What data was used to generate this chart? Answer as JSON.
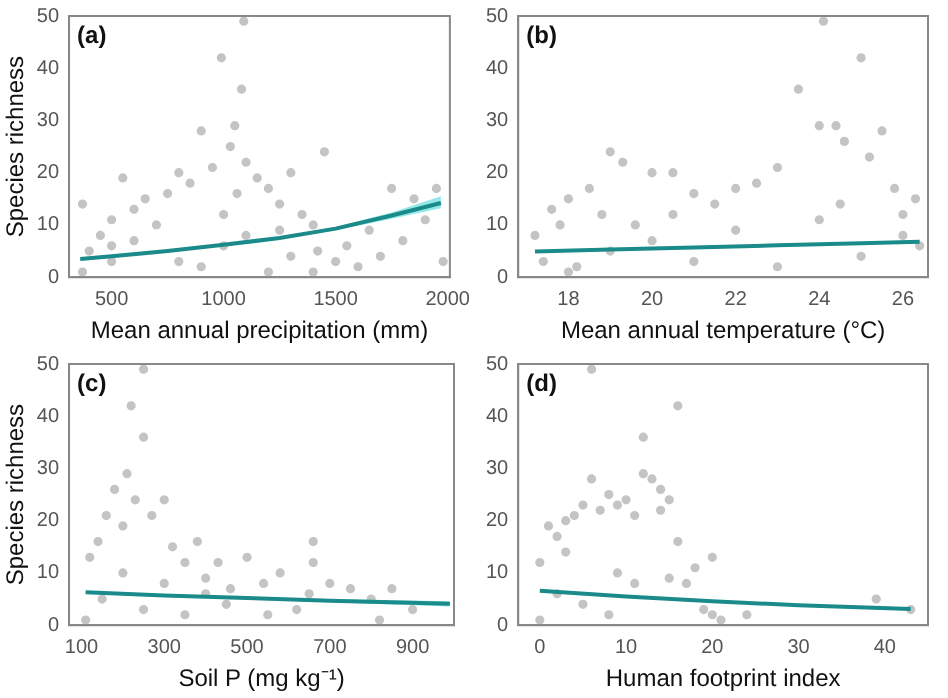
{
  "chart_data": [
    {
      "type": "scatter",
      "title": "(a)",
      "xlabel": "Mean annual precipitation (mm)",
      "ylabel": "Species richness",
      "xlim": [
        310,
        2010
      ],
      "xticks": [
        500,
        1000,
        1500,
        2000
      ],
      "ylim": [
        0,
        50
      ],
      "yticks": [
        0,
        10,
        20,
        30,
        40,
        50
      ],
      "series": [
        {
          "type": "scatter",
          "marker": "circle",
          "color": "#c4c4c4",
          "x": [
            370,
            370,
            400,
            450,
            500,
            500,
            550,
            600,
            650,
            700,
            750,
            800,
            850,
            900,
            950,
            990,
            1000,
            1030,
            1050,
            1060,
            1080,
            1090,
            1100,
            1150,
            1200,
            1250,
            1300,
            1350,
            1400,
            1420,
            1450,
            1500,
            1550,
            1600,
            1650,
            1700,
            1750,
            1800,
            1850,
            1900,
            1950,
            1980,
            1200,
            900,
            1100,
            600,
            1300,
            1000,
            800,
            1400,
            500,
            1250
          ],
          "values": [
            1,
            14,
            5,
            8,
            3,
            11,
            19,
            13,
            15,
            10,
            16,
            20,
            18,
            28,
            21,
            42,
            12,
            25,
            29,
            16,
            36,
            49,
            22,
            19,
            17,
            14,
            20,
            12,
            10,
            5,
            24,
            3,
            6,
            2,
            9,
            4,
            17,
            7,
            15,
            11,
            17,
            3,
            1,
            2,
            8,
            7,
            4,
            6,
            3,
            1,
            6,
            9
          ]
        },
        {
          "type": "line",
          "marker": "none",
          "color": "#1b8a8a",
          "x": [
            360,
            500,
            750,
            1000,
            1250,
            1500,
            1750,
            1970
          ],
          "values": [
            3.5,
            4,
            5,
            6.2,
            7.5,
            9.3,
            11.8,
            14.2
          ],
          "lower": [
            3.2,
            3.8,
            4.8,
            6,
            7.3,
            9,
            11.2,
            13.2
          ],
          "upper": [
            3.8,
            4.2,
            5.2,
            6.4,
            7.7,
            9.6,
            12.4,
            15.5
          ]
        }
      ]
    },
    {
      "type": "scatter",
      "title": "(b)",
      "xlabel": "Mean annual temperature (°C)",
      "xlim": [
        16.8,
        26.6
      ],
      "xticks": [
        18,
        20,
        22,
        24,
        26
      ],
      "ylim": [
        0,
        50
      ],
      "yticks": [
        0,
        10,
        20,
        30,
        40,
        50
      ],
      "series": [
        {
          "type": "scatter",
          "marker": "circle",
          "color": "#c4c4c4",
          "x": [
            17.2,
            17.4,
            17.6,
            17.8,
            18,
            18.2,
            18.5,
            18.8,
            19,
            19.3,
            19.6,
            20,
            20.5,
            21,
            21.5,
            22,
            22.5,
            23,
            23.5,
            24,
            24.1,
            24.4,
            24.6,
            25,
            25.2,
            25.5,
            25.8,
            26,
            26.3,
            26.4,
            18,
            19,
            20,
            21,
            22,
            23,
            24,
            25,
            26,
            20.5,
            24.5
          ],
          "values": [
            8,
            3,
            13,
            10,
            15,
            2,
            17,
            12,
            24,
            22,
            10,
            20,
            20,
            16,
            14,
            17,
            18,
            21,
            36,
            29,
            49,
            29,
            26,
            42,
            23,
            28,
            17,
            12,
            15,
            6,
            1,
            5,
            7,
            3,
            9,
            2,
            11,
            4,
            8,
            12,
            14
          ]
        },
        {
          "type": "line",
          "marker": "none",
          "color": "#1b8a8a",
          "x": [
            17.2,
            19,
            21,
            23,
            25,
            26.4
          ],
          "values": [
            4.9,
            5.3,
            5.7,
            6.1,
            6.5,
            6.8
          ],
          "lower": [
            4.7,
            5.1,
            5.6,
            6,
            6.3,
            6.5
          ],
          "upper": [
            5.1,
            5.5,
            5.8,
            6.2,
            6.7,
            7.1
          ]
        }
      ]
    },
    {
      "type": "scatter",
      "title": "(c)",
      "xlabel": "Soil P (mg kg⁻¹)",
      "ylabel": "Species richness",
      "xlim": [
        70,
        1000
      ],
      "xticks": [
        100,
        300,
        500,
        700,
        900
      ],
      "ylim": [
        0,
        50
      ],
      "yticks": [
        0,
        10,
        20,
        30,
        40,
        50
      ],
      "series": [
        {
          "type": "scatter",
          "marker": "circle",
          "color": "#c4c4c4",
          "x": [
            110,
            120,
            140,
            160,
            180,
            200,
            210,
            220,
            230,
            250,
            250,
            270,
            300,
            320,
            350,
            380,
            400,
            430,
            460,
            500,
            540,
            580,
            620,
            660,
            660,
            700,
            750,
            800,
            820,
            850,
            900,
            150,
            250,
            350,
            450,
            550,
            650,
            200,
            300,
            400
          ],
          "values": [
            1,
            13,
            16,
            21,
            26,
            19,
            29,
            42,
            24,
            49,
            36,
            21,
            24,
            15,
            12,
            16,
            9,
            12,
            7,
            13,
            8,
            10,
            3,
            16,
            12,
            8,
            7,
            5,
            1,
            7,
            3,
            5,
            3,
            2,
            4,
            2,
            6,
            10,
            8,
            6
          ]
        },
        {
          "type": "line",
          "marker": "none",
          "color": "#1b8a8a",
          "x": [
            110,
            300,
            500,
            700,
            990
          ],
          "values": [
            6.3,
            5.7,
            5.2,
            4.7,
            4.1
          ],
          "lower": [
            6.1,
            5.6,
            5,
            4.4,
            3.6
          ],
          "upper": [
            6.5,
            5.8,
            5.4,
            5,
            4.6
          ]
        }
      ]
    },
    {
      "type": "scatter",
      "title": "(d)",
      "xlabel": "Human footprint index",
      "xlim": [
        -2.5,
        45
      ],
      "xticks": [
        0,
        10,
        20,
        30,
        40
      ],
      "ylim": [
        0,
        50
      ],
      "yticks": [
        0,
        10,
        20,
        30,
        40,
        50
      ],
      "series": [
        {
          "type": "scatter",
          "marker": "circle",
          "color": "#c4c4c4",
          "x": [
            0,
            0,
            1,
            2,
            3,
            4,
            5,
            6,
            6,
            7,
            8,
            9,
            10,
            11,
            12,
            12,
            13,
            14,
            14,
            15,
            16,
            16,
            17,
            18,
            19,
            20,
            20,
            21,
            24,
            39,
            43,
            2,
            5,
            8,
            11,
            3,
            9,
            15
          ],
          "values": [
            1,
            12,
            19,
            17,
            20,
            21,
            23,
            49,
            28,
            22,
            25,
            23,
            24,
            21,
            36,
            29,
            28,
            26,
            22,
            24,
            42,
            16,
            8,
            11,
            3,
            13,
            2,
            1,
            2,
            5,
            3,
            6,
            4,
            2,
            8,
            14,
            10,
            9
          ]
        },
        {
          "type": "line",
          "marker": "none",
          "color": "#1b8a8a",
          "x": [
            0,
            10,
            20,
            30,
            43
          ],
          "values": [
            6.6,
            5.5,
            4.6,
            3.8,
            3.1
          ],
          "lower": [
            6.4,
            5.4,
            4.5,
            3.6,
            2.8
          ],
          "upper": [
            6.8,
            5.6,
            4.7,
            4,
            3.4
          ]
        }
      ]
    }
  ]
}
